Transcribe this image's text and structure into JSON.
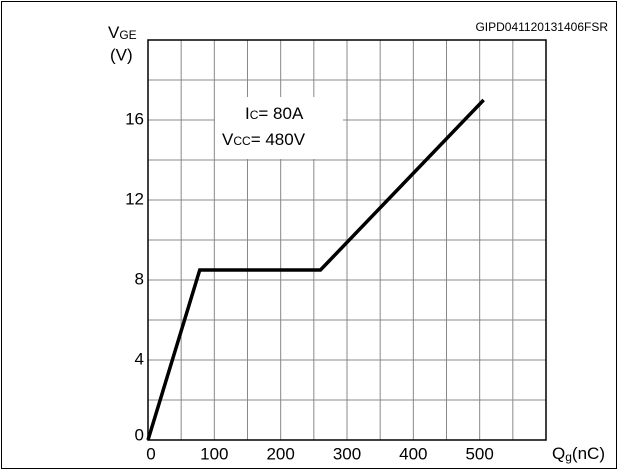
{
  "chart_data": {
    "type": "line",
    "code": "GIPD041120131406FSR",
    "y_label": {
      "main": "V",
      "sub": "GE",
      "unit": "(V)"
    },
    "x_label": {
      "main": "Q",
      "sub": "g",
      "unit": "(nC)"
    },
    "annotations": [
      {
        "main": "I",
        "sub": "C",
        "rest": "= 80A"
      },
      {
        "main": "V",
        "sub": "CC",
        "rest": "= 480V"
      }
    ],
    "series": [
      {
        "color": "#000000",
        "x": [
          0,
          78,
          260,
          506
        ],
        "values": [
          0,
          8.5,
          8.5,
          17
        ]
      }
    ],
    "xlim": [
      0,
      600
    ],
    "ylim": [
      0,
      20
    ],
    "xticks": [
      0,
      100,
      200,
      300,
      400,
      500
    ],
    "yticks": [
      0,
      4,
      8,
      12,
      16
    ],
    "xgrid": [
      0,
      50,
      100,
      150,
      200,
      250,
      300,
      350,
      400,
      450,
      500,
      550,
      600
    ],
    "ygrid": [
      0,
      2,
      4,
      6,
      8,
      10,
      12,
      14,
      16,
      18,
      20
    ],
    "grid": true
  }
}
